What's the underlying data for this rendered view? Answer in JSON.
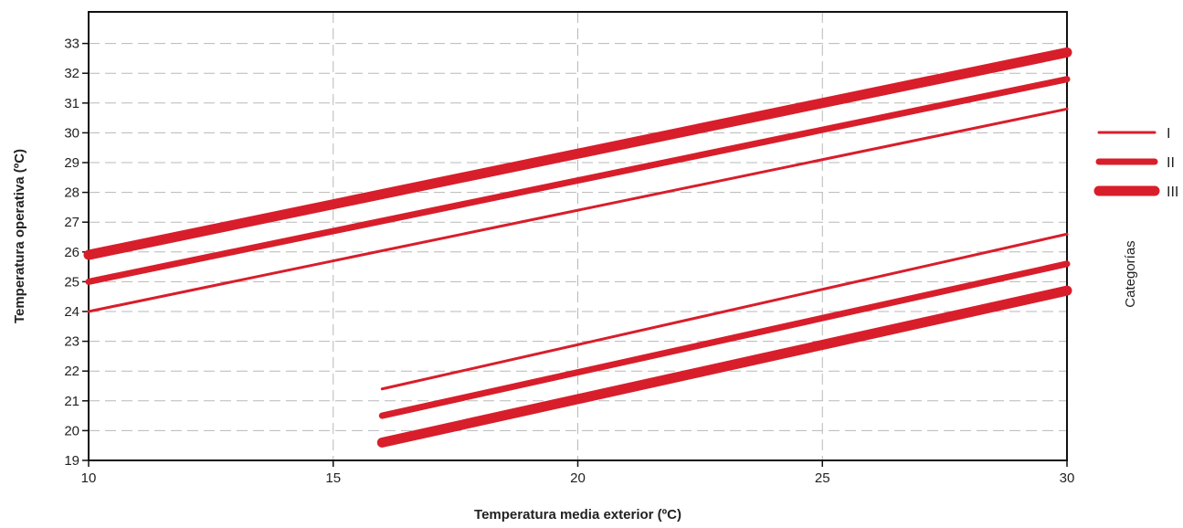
{
  "chart_data": {
    "type": "line",
    "title": "",
    "xlabel": "Temperatura media exterior (ºC)",
    "ylabel": "Temperatura operativa (ºC)",
    "xlim": [
      10,
      30
    ],
    "ylim": [
      19,
      34
    ],
    "xticks": [
      10,
      15,
      20,
      25,
      30
    ],
    "yticks": [
      19,
      20,
      21,
      22,
      23,
      24,
      25,
      26,
      27,
      28,
      29,
      30,
      31,
      32,
      33
    ],
    "grid": true,
    "legend_title": "Categorías",
    "legend_position": "right",
    "line_color": "#d81e2b",
    "series": [
      {
        "name": "I",
        "category": "I",
        "bound": "upper",
        "x": [
          10,
          30
        ],
        "y": [
          24.0,
          30.8
        ]
      },
      {
        "name": "II",
        "category": "II",
        "bound": "upper",
        "x": [
          10,
          30
        ],
        "y": [
          25.0,
          31.8
        ]
      },
      {
        "name": "III",
        "category": "III",
        "bound": "upper",
        "x": [
          10,
          30
        ],
        "y": [
          25.9,
          32.7
        ]
      },
      {
        "name": "I",
        "category": "I",
        "bound": "lower",
        "x": [
          16,
          30
        ],
        "y": [
          21.4,
          26.6
        ]
      },
      {
        "name": "II",
        "category": "II",
        "bound": "lower",
        "x": [
          16,
          30
        ],
        "y": [
          20.5,
          25.6
        ]
      },
      {
        "name": "III",
        "category": "III",
        "bound": "lower",
        "x": [
          16,
          30
        ],
        "y": [
          19.6,
          24.7
        ]
      }
    ],
    "legend": [
      {
        "label": "I",
        "category": "I"
      },
      {
        "label": "II",
        "category": "II"
      },
      {
        "label": "III",
        "category": "III"
      }
    ]
  }
}
